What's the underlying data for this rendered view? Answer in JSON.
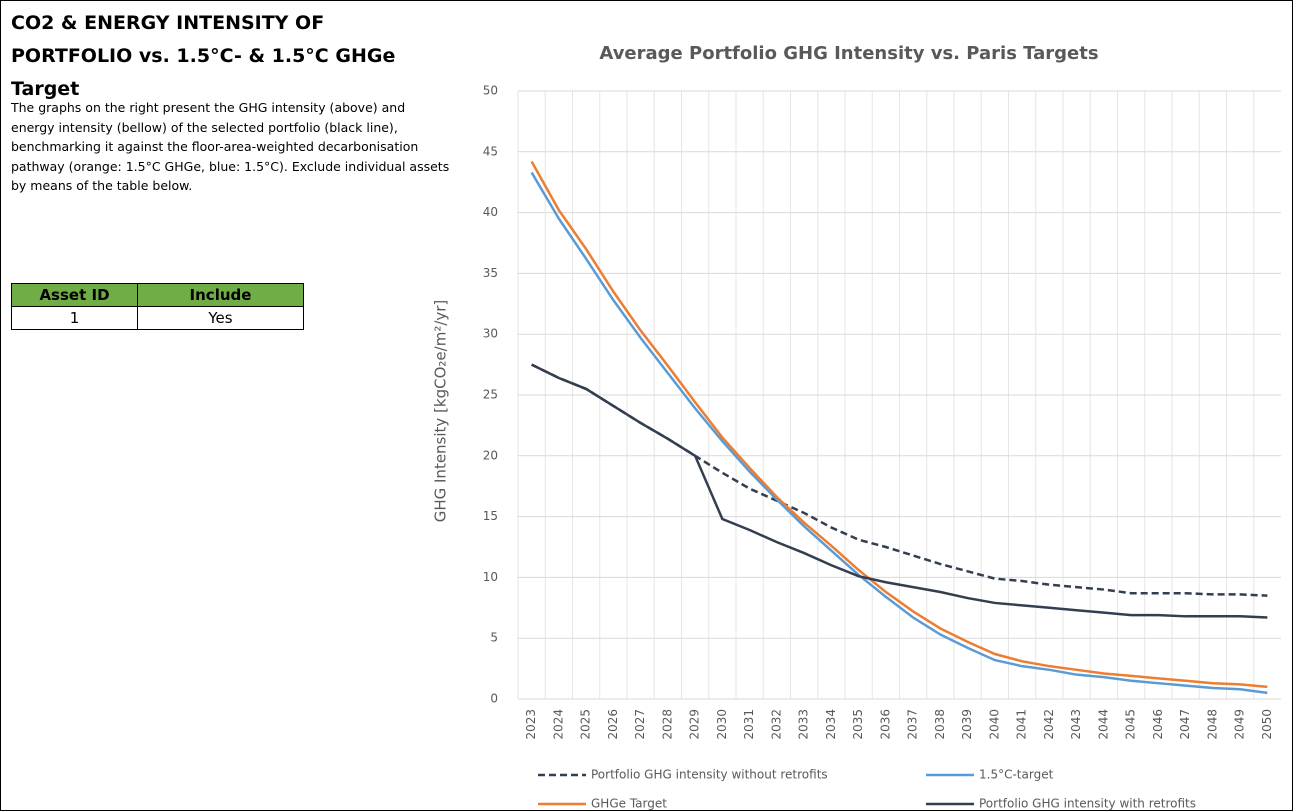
{
  "header": {
    "title": "CO2 & ENERGY INTENSITY OF PORTFOLIO vs. 1.5°C- & 1.5°C GHGe Target",
    "description": "The graphs on the right present the GHG intensity (above) and energy intensity (bellow) of the selected portfolio (black line), benchmarking it against the floor-area-weighted decarbonisation pathway (orange: 1.5°C GHGe, blue: 1.5°C). Exclude individual assets by means of the table below."
  },
  "table": {
    "columns": [
      "Asset ID",
      "Include"
    ],
    "rows": [
      [
        "1",
        "Yes"
      ]
    ]
  },
  "chart_data": {
    "type": "line",
    "title": "Average Portfolio GHG Intensity vs. Paris Targets",
    "y_label": "GHG Intensity [kgCO₂e/m²/yr]",
    "categories": [
      "2023",
      "2024",
      "2025",
      "2026",
      "2027",
      "2028",
      "2029",
      "2030",
      "2031",
      "2032",
      "2033",
      "2034",
      "2035",
      "2036",
      "2037",
      "2038",
      "2039",
      "2040",
      "2041",
      "2042",
      "2043",
      "2044",
      "2045",
      "2046",
      "2047",
      "2048",
      "2049",
      "2050"
    ],
    "series": [
      {
        "name": "Portfolio GHG intensity without retrofits",
        "color": "#333f50",
        "dashed": true,
        "values": [
          27.5,
          26.4,
          25.5,
          24.1,
          22.7,
          21.4,
          20,
          18.6,
          17.3,
          16.3,
          15.3,
          14.1,
          13.1,
          12.5,
          11.8,
          11.1,
          10.5,
          9.9,
          9.7,
          9.4,
          9.2,
          9.0,
          8.7,
          8.7,
          8.7,
          8.6,
          8.6,
          8.5
        ]
      },
      {
        "name": "1.5°C-target",
        "color": "#5b9bd5",
        "values": [
          43.3,
          39.5,
          36.2,
          32.8,
          29.7,
          26.8,
          23.9,
          21.2,
          18.7,
          16.4,
          14.2,
          12.2,
          10.2,
          8.4,
          6.7,
          5.3,
          4.2,
          3.2,
          2.7,
          2.4,
          2.0,
          1.8,
          1.5,
          1.3,
          1.1,
          0.9,
          0.8,
          0.5
        ]
      },
      {
        "name": "GHGe Target",
        "color": "#ed7d31",
        "values": [
          44.2,
          40.2,
          37,
          33.5,
          30.3,
          27.4,
          24.4,
          21.5,
          19,
          16.6,
          14.5,
          12.6,
          10.6,
          8.8,
          7.2,
          5.8,
          4.7,
          3.7,
          3.1,
          2.7,
          2.4,
          2.1,
          1.9,
          1.7,
          1.5,
          1.3,
          1.2,
          1.0
        ]
      },
      {
        "name": "Portfolio GHG intensity with retrofits",
        "color": "#333f50",
        "values": [
          27.5,
          26.4,
          25.5,
          24.1,
          22.7,
          21.4,
          20,
          14.8,
          13.9,
          12.9,
          12.0,
          11.0,
          10.1,
          9.6,
          9.2,
          8.8,
          8.3,
          7.9,
          7.7,
          7.5,
          7.3,
          7.1,
          6.9,
          6.9,
          6.8,
          6.8,
          6.8,
          6.7
        ]
      }
    ],
    "ylim": [
      0,
      50
    ],
    "yticks": [
      0,
      5,
      10,
      15,
      20,
      25,
      30,
      35,
      40,
      45,
      50
    ],
    "grid": true
  }
}
